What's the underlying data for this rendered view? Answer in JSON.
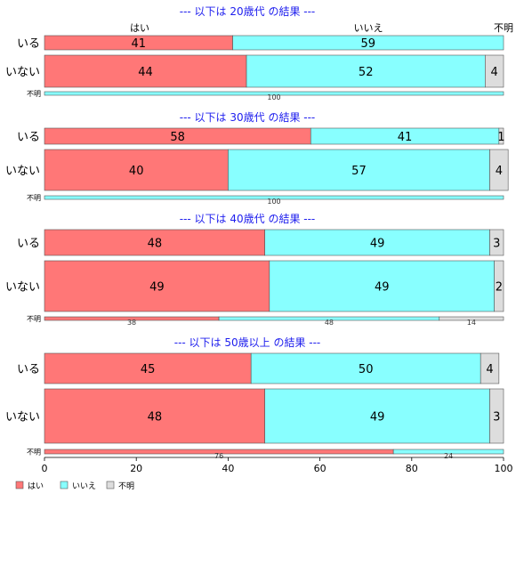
{
  "chart_data": {
    "type": "bar",
    "stacked": "percent",
    "orientation": "horizontal",
    "categories": [
      "はい",
      "いいえ",
      "不明"
    ],
    "colors": {
      "はい": "#ff7777",
      "いいえ": "#88ffff",
      "不明": "#dddddd"
    },
    "title_color": "#2020ee",
    "xlim": [
      0,
      100
    ],
    "xticks": [
      0,
      20,
      40,
      60,
      80,
      100
    ],
    "top_labels": [
      "はい",
      "いいえ",
      "不明"
    ],
    "legend": {
      "position": "bottom-left",
      "items": [
        "はい",
        "いいえ",
        "不明"
      ]
    },
    "panels": [
      {
        "title": "--- 以下は 20歳代 の結果 ---",
        "rows": [
          {
            "label": "いる",
            "values": [
              41,
              59,
              0
            ],
            "value_labels": [
              "41",
              "59",
              ""
            ]
          },
          {
            "label": "いない",
            "values": [
              44,
              52,
              4
            ],
            "value_labels": [
              "44",
              "52",
              "4"
            ]
          },
          {
            "label": "不明",
            "values": [
              0,
              100,
              0
            ],
            "value_labels": [
              "",
              "100",
              ""
            ]
          }
        ]
      },
      {
        "title": "--- 以下は 30歳代 の結果 ---",
        "rows": [
          {
            "label": "いる",
            "values": [
              58,
              41,
              1
            ],
            "value_labels": [
              "58",
              "41",
              "1"
            ]
          },
          {
            "label": "いない",
            "values": [
              40,
              57,
              4
            ],
            "value_labels": [
              "40",
              "57",
              "4"
            ]
          },
          {
            "label": "不明",
            "values": [
              0,
              100,
              0
            ],
            "value_labels": [
              "",
              "100",
              ""
            ]
          }
        ]
      },
      {
        "title": "--- 以下は 40歳代 の結果 ---",
        "rows": [
          {
            "label": "いる",
            "values": [
              48,
              49,
              3
            ],
            "value_labels": [
              "48",
              "49",
              "3"
            ]
          },
          {
            "label": "いない",
            "values": [
              49,
              49,
              2
            ],
            "value_labels": [
              "49",
              "49",
              "2"
            ]
          },
          {
            "label": "不明",
            "values": [
              38,
              48,
              14
            ],
            "value_labels": [
              "38",
              "48",
              "14"
            ]
          }
        ]
      },
      {
        "title": "--- 以下は 50歳以上 の結果 ---",
        "rows": [
          {
            "label": "いる",
            "values": [
              45,
              50,
              4
            ],
            "value_labels": [
              "45",
              "50",
              "4"
            ]
          },
          {
            "label": "いない",
            "values": [
              48,
              49,
              3
            ],
            "value_labels": [
              "48",
              "49",
              "3"
            ]
          },
          {
            "label": "不明",
            "values": [
              76,
              24,
              0
            ],
            "value_labels": [
              "76",
              "24",
              ""
            ]
          }
        ]
      }
    ]
  }
}
